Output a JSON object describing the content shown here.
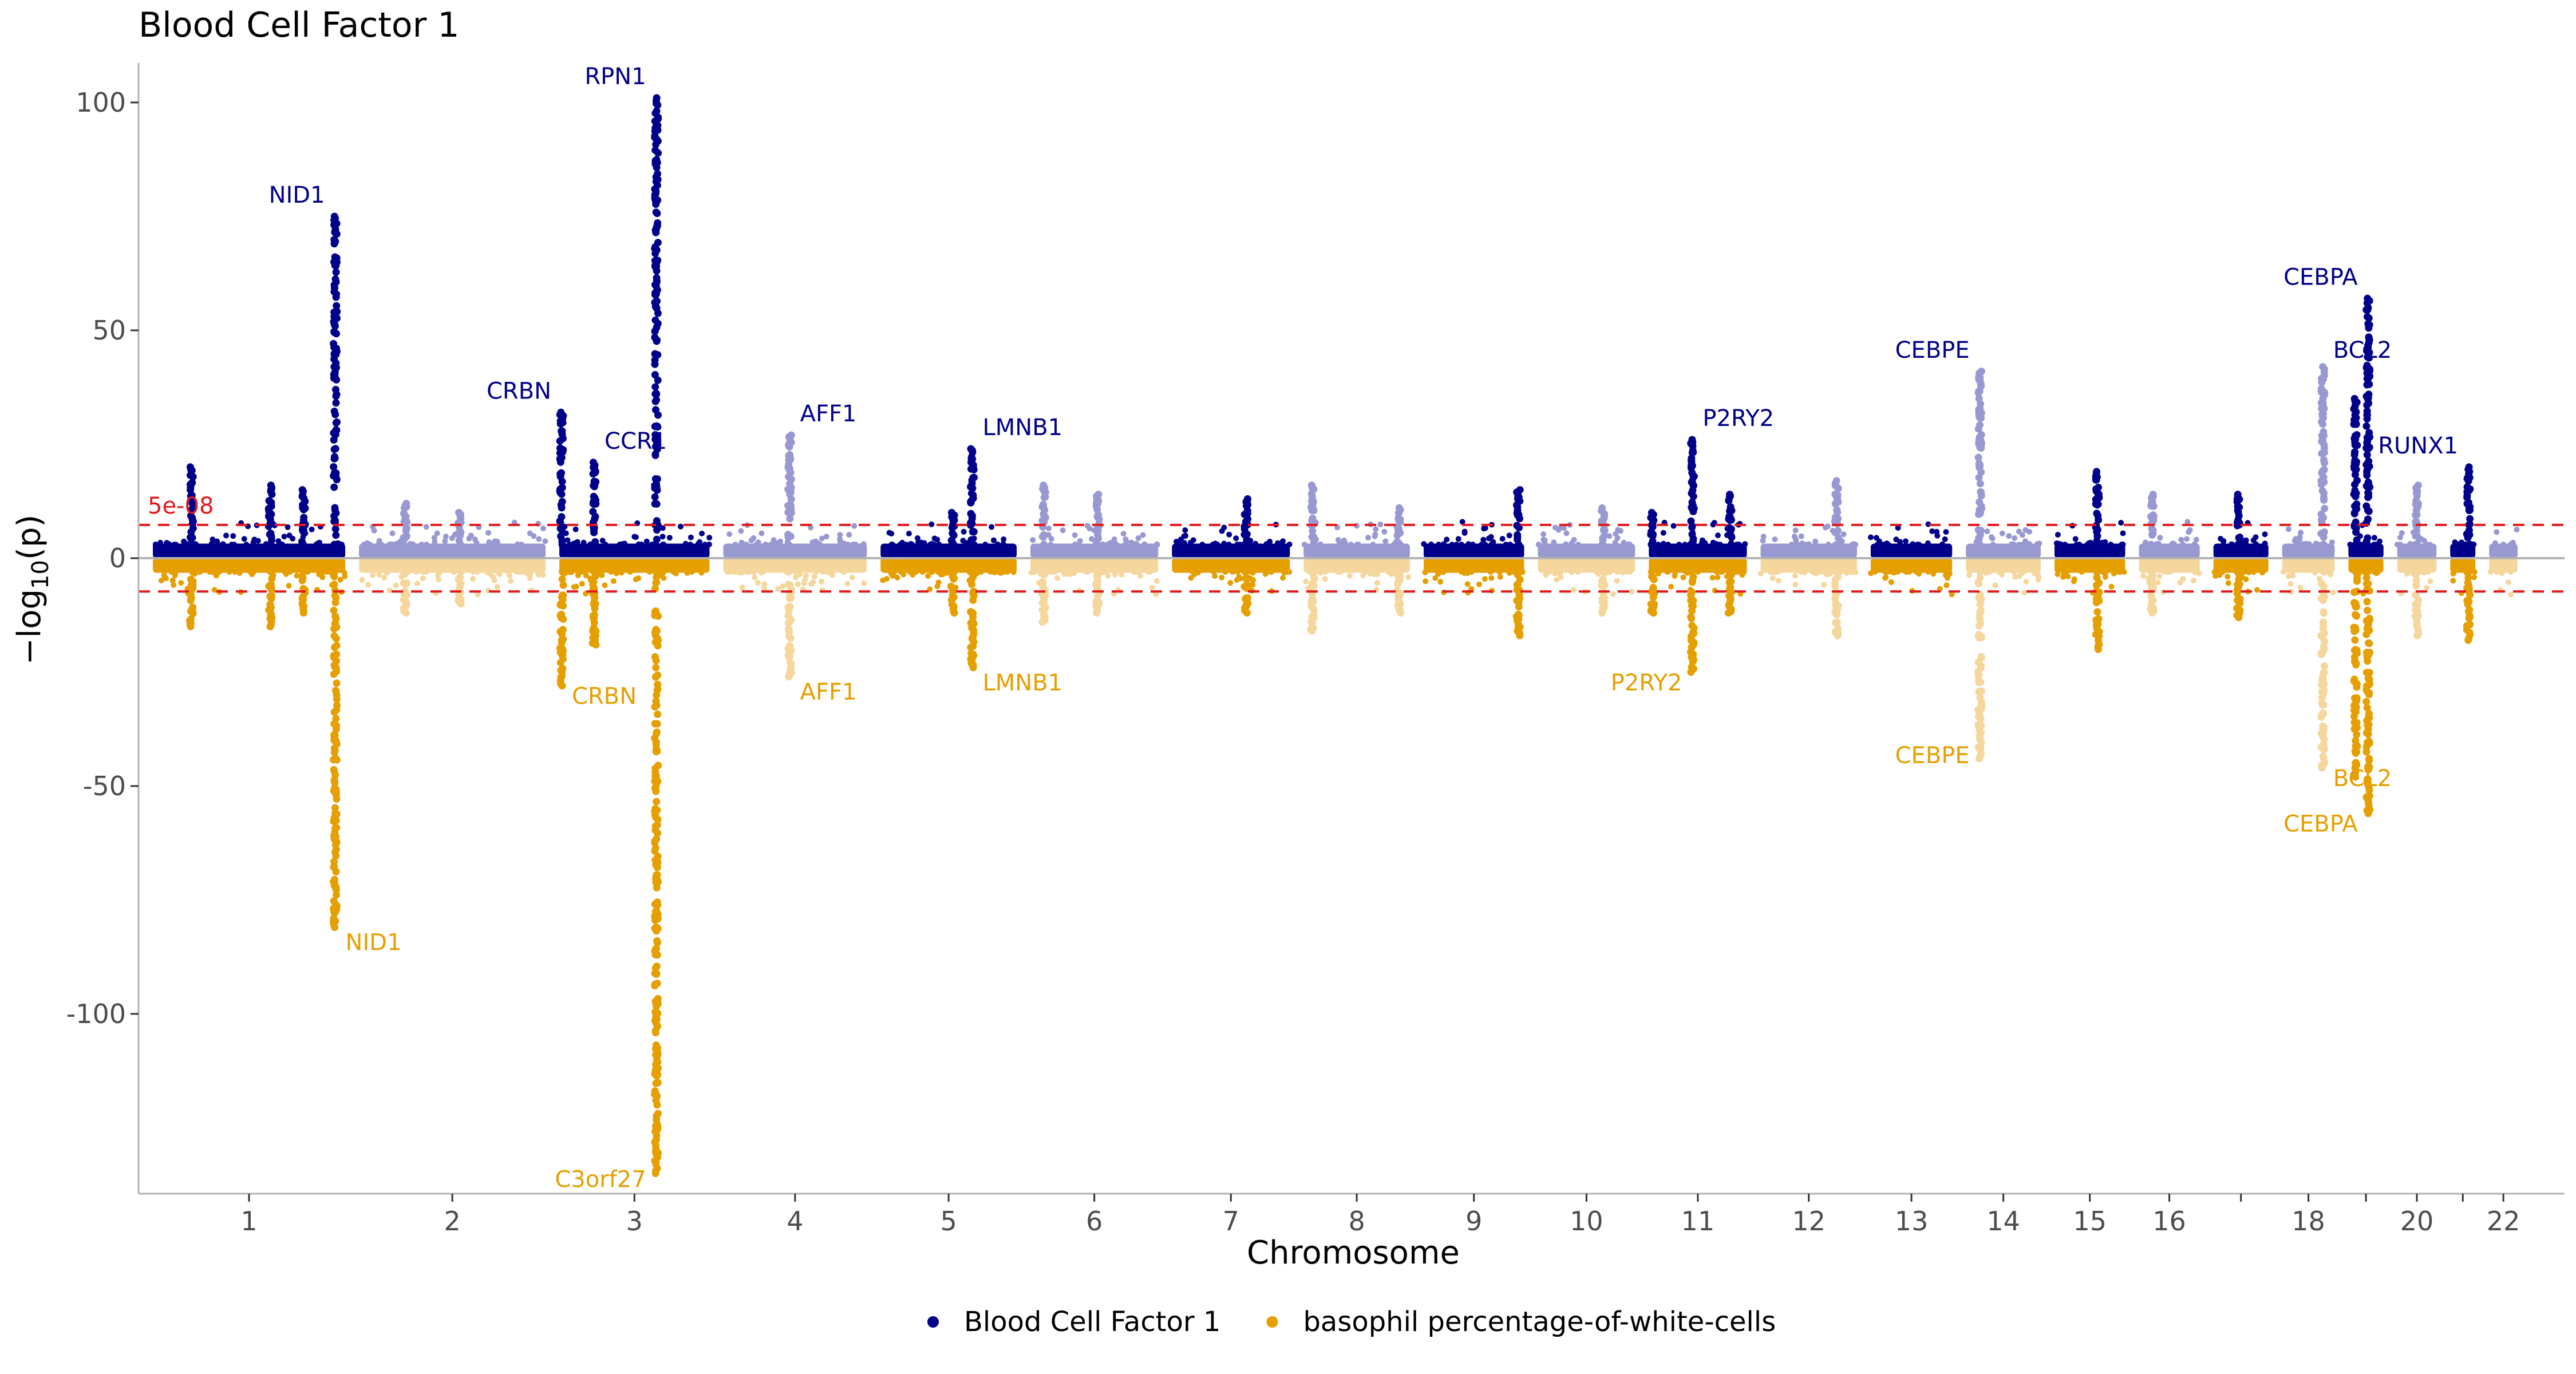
{
  "chart_data": {
    "type": "scatter",
    "title": "Blood Cell Factor 1",
    "xlabel": "Chromosome",
    "ylabel_prefix": "−log",
    "ylabel_sub": "10",
    "ylabel_suffix": "(p)",
    "ylim": [
      -142,
      110
    ],
    "yticks": [
      {
        "value": 100,
        "label": "100"
      },
      {
        "value": 50,
        "label": "50"
      },
      {
        "value": 0,
        "label": "0"
      },
      {
        "value": -50,
        "label": "-50"
      },
      {
        "value": -100,
        "label": "-100"
      }
    ],
    "threshold": {
      "value": 7.3,
      "label": "5e-08",
      "color": "#e31a1c"
    },
    "grid": false,
    "legend_position": "bottom",
    "series": [
      {
        "name": "Blood Cell Factor 1",
        "color": "#00008b",
        "light_color": "#9999d1",
        "direction": "up"
      },
      {
        "name": "basophil percentage-of-white-cells",
        "color": "#e69f00",
        "light_color": "#f5d79e",
        "direction": "down"
      }
    ],
    "chromosomes": [
      {
        "chr": "1",
        "label": "1",
        "start": 0,
        "end": 249
      },
      {
        "chr": "2",
        "label": "2",
        "start": 249,
        "end": 491
      },
      {
        "chr": "3",
        "label": "3",
        "start": 491,
        "end": 689
      },
      {
        "chr": "4",
        "label": "4",
        "start": 689,
        "end": 879
      },
      {
        "chr": "5",
        "label": "5",
        "start": 879,
        "end": 1060
      },
      {
        "chr": "6",
        "label": "6",
        "start": 1060,
        "end": 1231
      },
      {
        "chr": "7",
        "label": "7",
        "start": 1231,
        "end": 1390
      },
      {
        "chr": "8",
        "label": "8",
        "start": 1390,
        "end": 1535
      },
      {
        "chr": "9",
        "label": "9",
        "start": 1535,
        "end": 1673
      },
      {
        "chr": "10",
        "label": "10",
        "start": 1673,
        "end": 1807
      },
      {
        "chr": "11",
        "label": "11",
        "start": 1807,
        "end": 1942
      },
      {
        "chr": "12",
        "label": "12",
        "start": 1942,
        "end": 2075
      },
      {
        "chr": "13",
        "label": "13",
        "start": 2075,
        "end": 2190
      },
      {
        "chr": "14",
        "label": "14",
        "start": 2190,
        "end": 2297
      },
      {
        "chr": "15",
        "label": "15",
        "start": 2297,
        "end": 2399
      },
      {
        "chr": "16",
        "label": "16",
        "start": 2399,
        "end": 2489
      },
      {
        "chr": "17",
        "label": "",
        "start": 2489,
        "end": 2572
      },
      {
        "chr": "18",
        "label": "18",
        "start": 2572,
        "end": 2652
      },
      {
        "chr": "19",
        "label": "",
        "start": 2652,
        "end": 2711
      },
      {
        "chr": "20",
        "label": "20",
        "start": 2711,
        "end": 2775
      },
      {
        "chr": "21",
        "label": "",
        "start": 2775,
        "end": 2822
      },
      {
        "chr": "22",
        "label": "22",
        "start": 2822,
        "end": 2873
      }
    ],
    "peaks": [
      {
        "chr": "1",
        "pos": 50,
        "up": 20,
        "down": 15
      },
      {
        "chr": "1",
        "pos": 152,
        "up": 16,
        "down": 15
      },
      {
        "chr": "1",
        "pos": 195,
        "up": 15,
        "down": 12
      },
      {
        "chr": "1",
        "pos": 236,
        "up": 75,
        "down": 81
      },
      {
        "chr": "2",
        "pos": 60,
        "up": 12,
        "down": 12
      },
      {
        "chr": "2",
        "pos": 130,
        "up": 10,
        "down": 10
      },
      {
        "chr": "3",
        "pos": 3,
        "up": 32,
        "down": 28
      },
      {
        "chr": "3",
        "pos": 46,
        "up": 21,
        "down": 19
      },
      {
        "chr": "3",
        "pos": 128,
        "up": 101,
        "down": 135
      },
      {
        "chr": "4",
        "pos": 88,
        "up": 27,
        "down": 26
      },
      {
        "chr": "5",
        "pos": 122,
        "up": 24,
        "down": 24
      },
      {
        "chr": "5",
        "pos": 96,
        "up": 10,
        "down": 12
      },
      {
        "chr": "6",
        "pos": 18,
        "up": 16,
        "down": 14
      },
      {
        "chr": "6",
        "pos": 90,
        "up": 14,
        "down": 12
      },
      {
        "chr": "7",
        "pos": 100,
        "up": 13,
        "down": 12
      },
      {
        "chr": "8",
        "pos": 12,
        "up": 16,
        "down": 16
      },
      {
        "chr": "8",
        "pos": 130,
        "up": 11,
        "down": 12
      },
      {
        "chr": "9",
        "pos": 130,
        "up": 15,
        "down": 17
      },
      {
        "chr": "10",
        "pos": 90,
        "up": 11,
        "down": 12
      },
      {
        "chr": "11",
        "pos": 5,
        "up": 10,
        "down": 12
      },
      {
        "chr": "11",
        "pos": 60,
        "up": 26,
        "down": 25
      },
      {
        "chr": "11",
        "pos": 112,
        "up": 14,
        "down": 12
      },
      {
        "chr": "12",
        "pos": 105,
        "up": 17,
        "down": 17
      },
      {
        "chr": "14",
        "pos": 20,
        "up": 41,
        "down": 44
      },
      {
        "chr": "15",
        "pos": 62,
        "up": 19,
        "down": 20
      },
      {
        "chr": "16",
        "pos": 20,
        "up": 14,
        "down": 12
      },
      {
        "chr": "17",
        "pos": 38,
        "up": 14,
        "down": 13
      },
      {
        "chr": "18",
        "pos": 62,
        "up": 42,
        "down": 46
      },
      {
        "chr": "19",
        "pos": 12,
        "up": 35,
        "down": 48
      },
      {
        "chr": "19",
        "pos": 33,
        "up": 57,
        "down": 56
      },
      {
        "chr": "20",
        "pos": 32,
        "up": 16,
        "down": 17
      },
      {
        "chr": "21",
        "pos": 34,
        "up": 20,
        "down": 18
      }
    ],
    "annotations": [
      {
        "gene": "RPN1",
        "chr": "3",
        "pos": 128,
        "y": 104,
        "side": "left",
        "series": 0
      },
      {
        "gene": "NID1",
        "chr": "1",
        "pos": 236,
        "y": 78,
        "side": "left",
        "series": 0
      },
      {
        "gene": "CRBN",
        "chr": "3",
        "pos": 3,
        "y": 35,
        "side": "left",
        "series": 0
      },
      {
        "gene": "CCR1",
        "chr": "3",
        "pos": 46,
        "y": 24,
        "side": "right",
        "series": 0
      },
      {
        "gene": "AFF1",
        "chr": "4",
        "pos": 88,
        "y": 30,
        "side": "right",
        "series": 0
      },
      {
        "gene": "LMNB1",
        "chr": "5",
        "pos": 122,
        "y": 27,
        "side": "right",
        "series": 0
      },
      {
        "gene": "P2RY2",
        "chr": "11",
        "pos": 60,
        "y": 29,
        "side": "right",
        "series": 0
      },
      {
        "gene": "CEBPE",
        "chr": "14",
        "pos": 20,
        "y": 44,
        "side": "left",
        "series": 0
      },
      {
        "gene": "CEBPA",
        "chr": "19",
        "pos": 33,
        "y": 60,
        "side": "left",
        "series": 0
      },
      {
        "gene": "BCL2",
        "chr": "18",
        "pos": 62,
        "y": 44,
        "side": "right",
        "series": 0
      },
      {
        "gene": "RUNX1",
        "chr": "21",
        "pos": 34,
        "y": 23,
        "side": "left",
        "series": 0
      },
      {
        "gene": "C3orf27",
        "chr": "3",
        "pos": 128,
        "y": -138,
        "side": "left",
        "series": 1
      },
      {
        "gene": "NID1",
        "chr": "1",
        "pos": 236,
        "y": -86,
        "side": "right",
        "series": 1
      },
      {
        "gene": "CRBN",
        "chr": "3",
        "pos": 3,
        "y": -32,
        "side": "right",
        "series": 1
      },
      {
        "gene": "AFF1",
        "chr": "4",
        "pos": 88,
        "y": -31,
        "side": "right",
        "series": 1
      },
      {
        "gene": "LMNB1",
        "chr": "5",
        "pos": 122,
        "y": -29,
        "side": "right",
        "series": 1
      },
      {
        "gene": "P2RY2",
        "chr": "11",
        "pos": 60,
        "y": -29,
        "side": "left",
        "series": 1
      },
      {
        "gene": "CEBPE",
        "chr": "14",
        "pos": 20,
        "y": -45,
        "side": "left",
        "series": 1
      },
      {
        "gene": "BCL2",
        "chr": "18",
        "pos": 62,
        "y": -50,
        "side": "right",
        "series": 1
      },
      {
        "gene": "CEBPA",
        "chr": "19",
        "pos": 33,
        "y": -60,
        "side": "left",
        "series": 1
      }
    ]
  }
}
